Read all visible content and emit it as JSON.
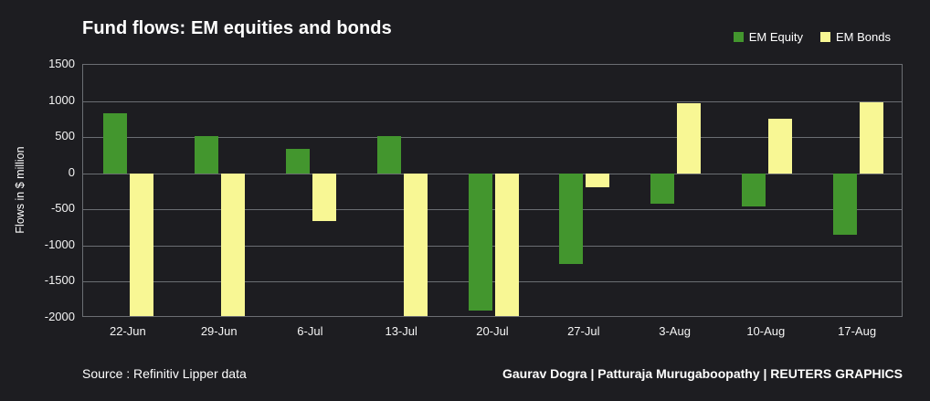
{
  "title": "Fund flows: EM equities and bonds",
  "y_axis_title": "Flows in $ million",
  "legend": [
    {
      "label": "EM Equity",
      "color": "#43962e"
    },
    {
      "label": "EM Bonds",
      "color": "#f8f794"
    }
  ],
  "chart_data": {
    "type": "bar",
    "title": "Fund flows: EM equities and bonds",
    "categories": [
      "22-Jun",
      "29-Jun",
      "6-Jul",
      "13-Jul",
      "20-Jul",
      "27-Jul",
      "3-Aug",
      "10-Aug",
      "17-Aug"
    ],
    "series": [
      {
        "name": "EM Equity",
        "color": "#43962e",
        "values": [
          830,
          520,
          340,
          520,
          -1900,
          -1250,
          -420,
          -460,
          -850
        ]
      },
      {
        "name": "EM Bonds",
        "color": "#f8f794",
        "values": [
          -2000,
          -2000,
          -660,
          -2000,
          -2000,
          -200,
          970,
          750,
          980
        ]
      }
    ],
    "xlabel": "",
    "ylabel": "Flows in $ million",
    "ylim": [
      -2000,
      1500
    ],
    "yticks": [
      1500,
      1000,
      500,
      0,
      -500,
      -1000,
      -1500,
      -2000
    ],
    "grid": true,
    "legend_position": "top-right"
  },
  "footer": {
    "source": "Source : Refinitiv Lipper data",
    "credits": "Gaurav Dogra | Patturaja Murugaboopathy | REUTERS GRAPHICS"
  },
  "colors": {
    "background": "#1d1d21",
    "grid": "#6b6e73",
    "text": "#ffffff",
    "em_equity": "#43962e",
    "em_bonds": "#f8f794"
  }
}
